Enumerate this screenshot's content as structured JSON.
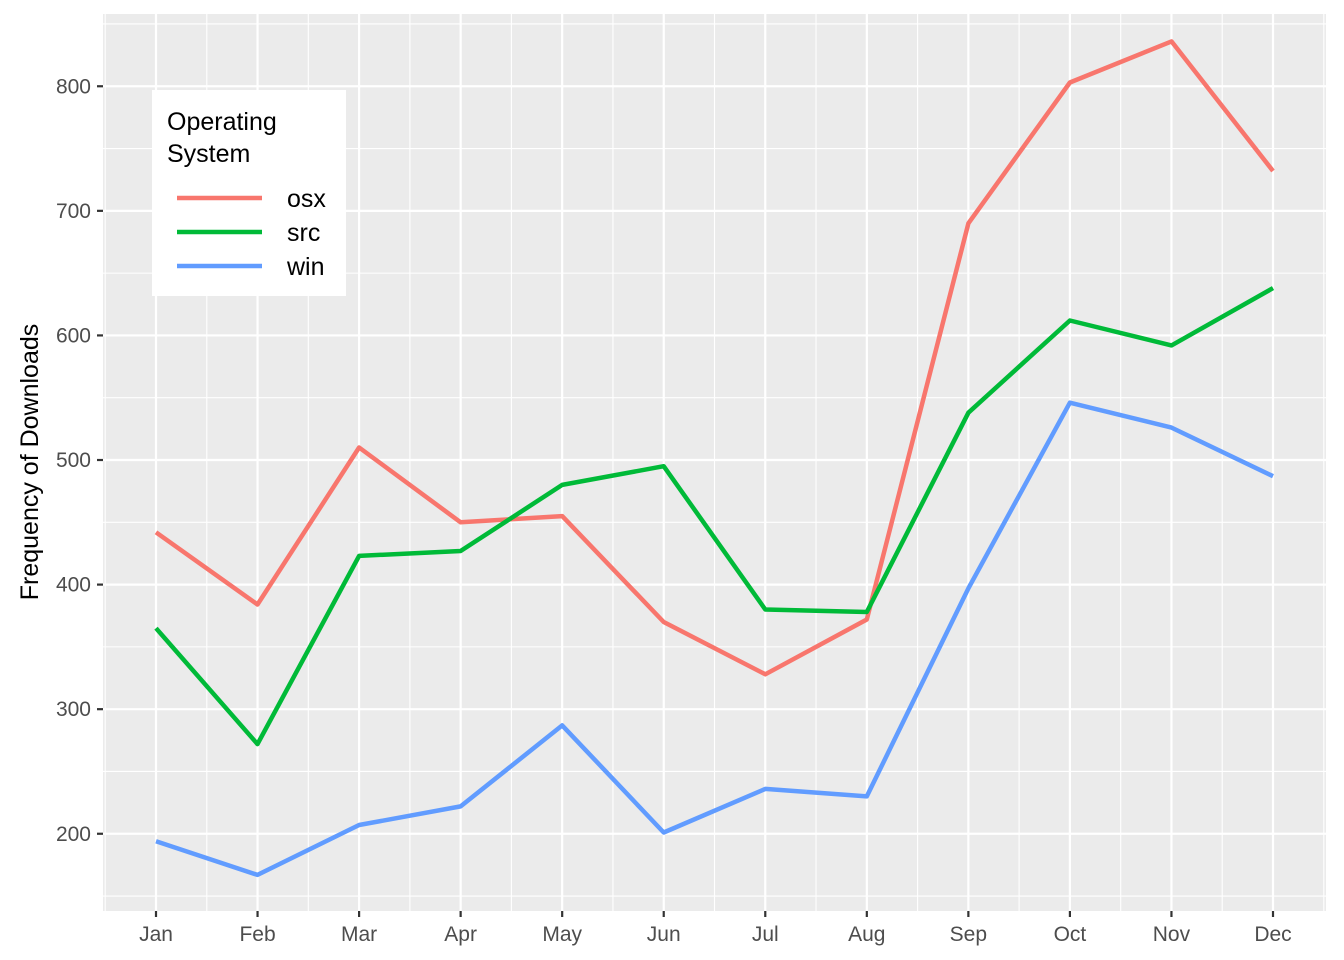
{
  "chart_data": {
    "type": "line",
    "title": "",
    "xlabel": "",
    "ylabel": "Frequency of Downloads",
    "categories": [
      "Jan",
      "Feb",
      "Mar",
      "Apr",
      "May",
      "Jun",
      "Jul",
      "Aug",
      "Sep",
      "Oct",
      "Nov",
      "Dec"
    ],
    "ylim": [
      138,
      858
    ],
    "yticks": [
      200,
      300,
      400,
      500,
      600,
      700,
      800
    ],
    "grid": true,
    "legend": {
      "title_lines": [
        "Operating",
        "System"
      ],
      "position": "top-left"
    },
    "series": [
      {
        "name": "osx",
        "color": "#F8766D",
        "values": [
          442,
          384,
          510,
          450,
          455,
          370,
          328,
          372,
          690,
          803,
          836,
          732
        ]
      },
      {
        "name": "src",
        "color": "#00BA38",
        "values": [
          365,
          272,
          423,
          427,
          480,
          495,
          380,
          378,
          538,
          612,
          592,
          638
        ]
      },
      {
        "name": "win",
        "color": "#619CFF",
        "values": [
          194,
          167,
          207,
          222,
          287,
          201,
          236,
          230,
          397,
          546,
          526,
          487
        ]
      }
    ],
    "colors": {
      "panel_background": "#EBEBEB",
      "grid_line": "#FFFFFF",
      "tick_label": "#4D4D4D"
    }
  }
}
